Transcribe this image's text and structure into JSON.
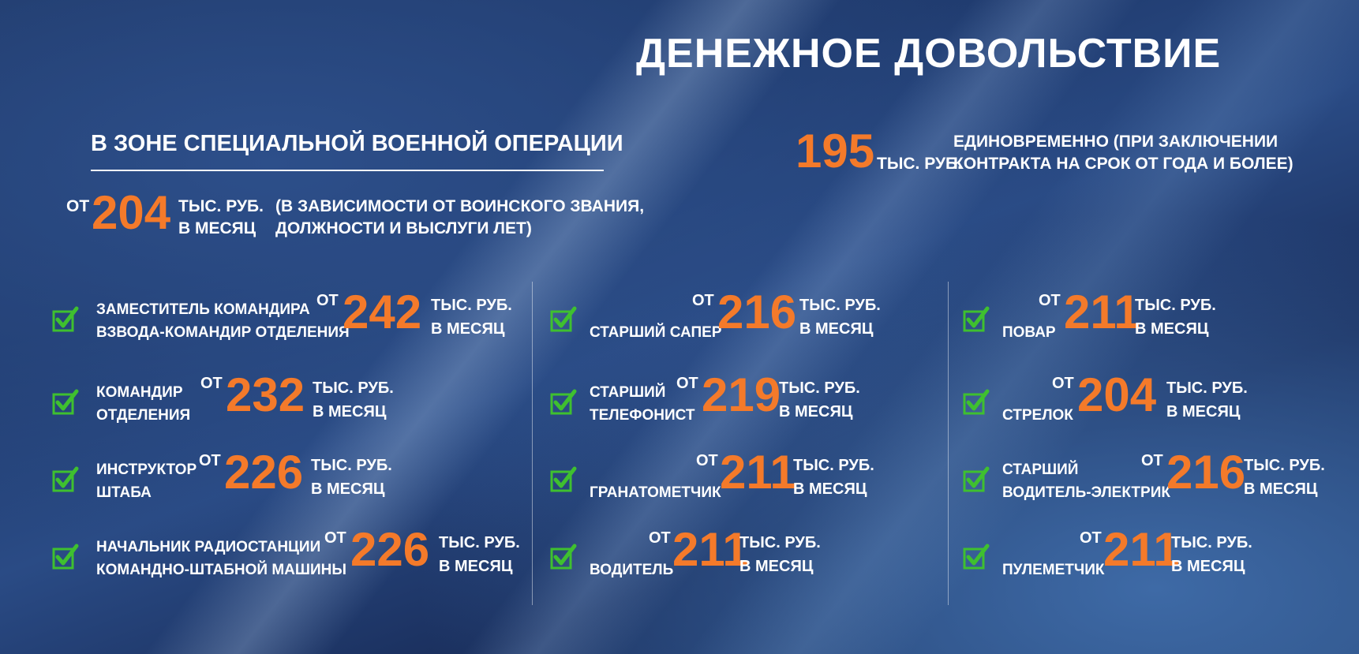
{
  "title": "ДЕНЕЖНОЕ ДОВОЛЬСТВИЕ",
  "subtitle": "В ЗОНЕ СПЕЦИАЛЬНОЙ ВОЕННОЙ ОПЕРАЦИИ",
  "one_time": {
    "amount": "195",
    "unit": "ТЫС. РУБ.",
    "desc_line1": "ЕДИНОВРЕМЕННО (ПРИ ЗАКЛЮЧЕНИИ",
    "desc_line2": "КОНТРАКТА НА СРОК ОТ ГОДА И БОЛЕЕ)"
  },
  "base": {
    "prefix": "ОТ",
    "amount": "204",
    "unit_line1": "ТЫС. РУБ.",
    "unit_line2": "В МЕСЯЦ",
    "note_line1": "(В ЗАВИСИМОСТИ ОТ ВОИНСКОГО ЗВАНИЯ,",
    "note_line2": "ДОЛЖНОСТИ И ВЫСЛУГИ ЛЕТ)"
  },
  "common": {
    "prefix": "ОТ",
    "unit_line1": "ТЫС. РУБ.",
    "unit_line2": "В МЕСЯЦ",
    "check_icon": "green-checkbox-icon",
    "check_color": "#3fc02f",
    "accent_color": "#f47a2a"
  },
  "columns": [
    {
      "items": [
        {
          "label1": "ЗАМЕСТИТЕЛЬ КОМАНДИРА",
          "label2": "ВЗВОДА-КОМАНДИР ОТДЕЛЕНИЯ",
          "amount": "242"
        },
        {
          "label1": "КОМАНДИР",
          "label2": "ОТДЕЛЕНИЯ",
          "amount": "232"
        },
        {
          "label1": "ИНСТРУКТОР",
          "label2": "ШТАБА",
          "amount": "226"
        },
        {
          "label1": "НАЧАЛЬНИК РАДИОСТАНЦИИ",
          "label2": "КОМАНДНО-ШТАБНОЙ МАШИНЫ",
          "amount": "226"
        }
      ]
    },
    {
      "items": [
        {
          "label1": "",
          "label2": "СТАРШИЙ САПЕР",
          "amount": "216"
        },
        {
          "label1": "СТАРШИЙ",
          "label2": "ТЕЛЕФОНИСТ",
          "amount": "219"
        },
        {
          "label1": "",
          "label2": "ГРАНАТОМЕТЧИК",
          "amount": "211"
        },
        {
          "label1": "",
          "label2": "ВОДИТЕЛЬ",
          "amount": "211"
        }
      ]
    },
    {
      "items": [
        {
          "label1": "",
          "label2": "ПОВАР",
          "amount": "211"
        },
        {
          "label1": "",
          "label2": "СТРЕЛОК",
          "amount": "204"
        },
        {
          "label1": "СТАРШИЙ",
          "label2": "ВОДИТЕЛЬ-ЭЛЕКТРИК",
          "amount": "216"
        },
        {
          "label1": "",
          "label2": "ПУЛЕМЕТЧИК",
          "amount": "211"
        }
      ]
    }
  ]
}
